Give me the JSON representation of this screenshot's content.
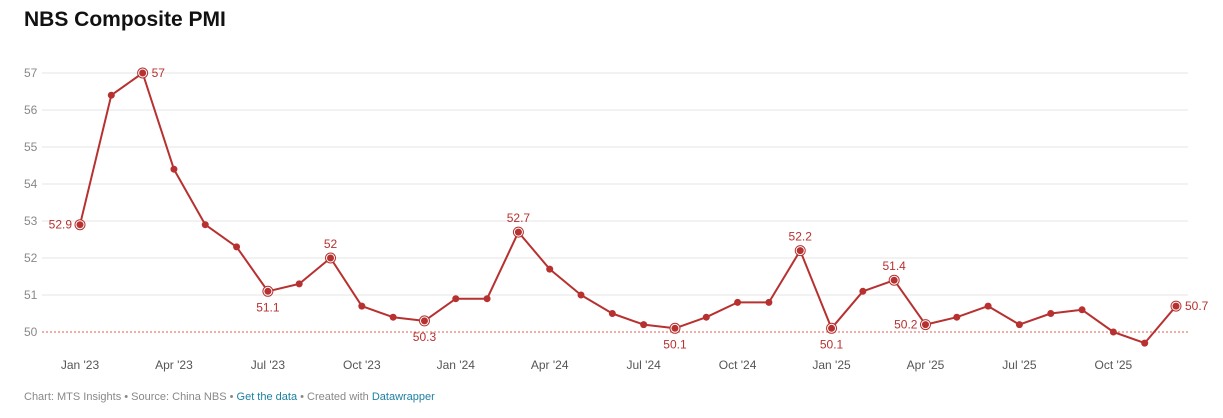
{
  "chart_data": {
    "type": "line",
    "title": "NBS Composite PMI",
    "xlabel": "",
    "ylabel": "",
    "ylim": [
      49.7,
      57.3
    ],
    "yticks": [
      50,
      51,
      52,
      53,
      54,
      55,
      56,
      57
    ],
    "reference_line": 50,
    "grid": true,
    "x": [
      "Jan '23",
      "Feb '23",
      "Mar '23",
      "Apr '23",
      "May '23",
      "Jun '23",
      "Jul '23",
      "Aug '23",
      "Sep '23",
      "Oct '23",
      "Nov '23",
      "Dec '23",
      "Jan '24",
      "Feb '24",
      "Mar '24",
      "Apr '24",
      "May '24",
      "Jun '24",
      "Jul '24",
      "Aug '24",
      "Sep '24",
      "Oct '24",
      "Nov '24",
      "Dec '24",
      "Jan '25",
      "Feb '25",
      "Mar '25",
      "Apr '25",
      "May '25",
      "Jun '25",
      "Jul '25",
      "Aug '25",
      "Sep '25",
      "Oct '25",
      "Nov '25",
      "Dec '25"
    ],
    "xtick_labels": [
      "Jan '23",
      "Apr '23",
      "Jul '23",
      "Oct '23",
      "Jan '24",
      "Apr '24",
      "Jul '24",
      "Oct '24",
      "Jan '25",
      "Apr '25",
      "Jul '25",
      "Oct '25"
    ],
    "series": [
      {
        "values": [
          52.9,
          56.4,
          57.0,
          54.4,
          52.9,
          52.3,
          51.1,
          51.3,
          52.0,
          50.7,
          50.4,
          50.3,
          50.9,
          50.9,
          52.7,
          51.7,
          51.0,
          50.5,
          50.2,
          50.1,
          50.4,
          50.8,
          50.8,
          52.2,
          50.1,
          51.1,
          51.4,
          50.2,
          50.4,
          50.7,
          50.2,
          50.5,
          50.6,
          50.0,
          49.7,
          50.7
        ]
      }
    ],
    "data_labels": [
      {
        "index": 0,
        "text": "52.9",
        "position": "left"
      },
      {
        "index": 2,
        "text": "57",
        "position": "right"
      },
      {
        "index": 6,
        "text": "51.1",
        "position": "below"
      },
      {
        "index": 8,
        "text": "52",
        "position": "above"
      },
      {
        "index": 11,
        "text": "50.3",
        "position": "below"
      },
      {
        "index": 14,
        "text": "52.7",
        "position": "above"
      },
      {
        "index": 19,
        "text": "50.1",
        "position": "below"
      },
      {
        "index": 23,
        "text": "52.2",
        "position": "above"
      },
      {
        "index": 24,
        "text": "50.1",
        "position": "below"
      },
      {
        "index": 26,
        "text": "51.4",
        "position": "above"
      },
      {
        "index": 27,
        "text": "50.2",
        "position": "left"
      },
      {
        "index": 35,
        "text": "50.7",
        "position": "right"
      }
    ],
    "colors": {
      "line": "#b73131",
      "reference": "#e0604e",
      "grid": "#e6e6e6"
    }
  },
  "footer": {
    "prefix": "Chart: MTS Insights • Source: China NBS • ",
    "get_data": "Get the data",
    "middle": " • Created with ",
    "tool": "Datawrapper"
  }
}
